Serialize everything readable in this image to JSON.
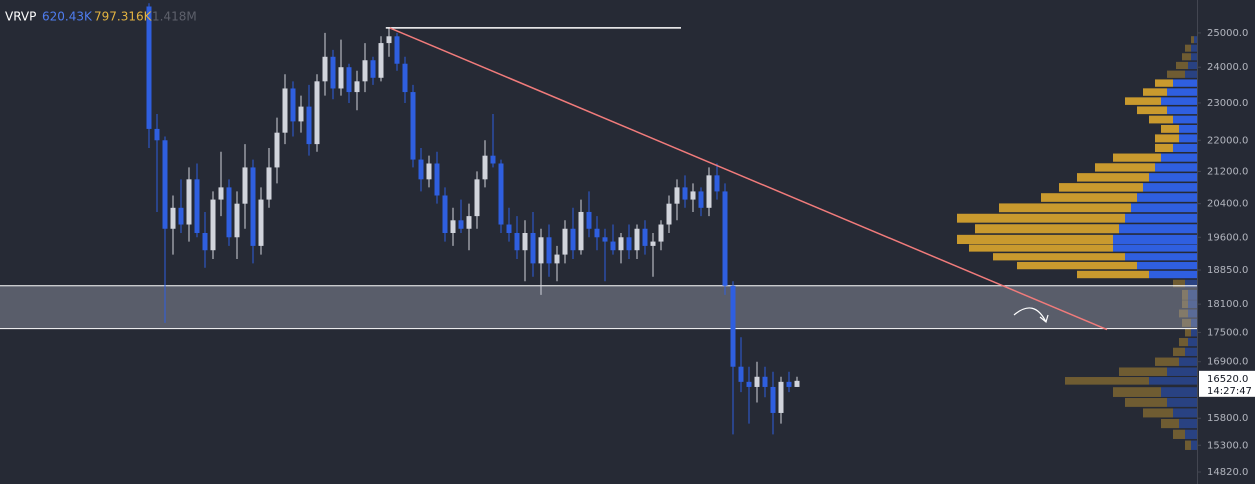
{
  "chart_data": {
    "type": "candlestick",
    "log_scale": true,
    "header": {
      "name": "VRVP",
      "up_total": "620.43K",
      "down_total": "797.316K",
      "total": "1.418M"
    },
    "up_color": "#d1d4dc",
    "down_color": "#2f5fe0",
    "ylim": [
      14610,
      26000
    ],
    "yticks": [
      {
        "value": 25000,
        "label": "25000.0"
      },
      {
        "value": 24000,
        "label": "24000.0"
      },
      {
        "value": 23000,
        "label": "23000.0"
      },
      {
        "value": 22000,
        "label": "22000.0"
      },
      {
        "value": 21200,
        "label": "21200.0"
      },
      {
        "value": 20400,
        "label": "20400.0"
      },
      {
        "value": 19600,
        "label": "19600.0"
      },
      {
        "value": 18850,
        "label": "18850.0"
      },
      {
        "value": 18100,
        "label": "18100.0"
      },
      {
        "value": 17500,
        "label": "17500.0"
      },
      {
        "value": 16900,
        "label": "16900.0"
      },
      {
        "value": 15800,
        "label": "15800.0"
      },
      {
        "value": 15300,
        "label": "15300.0"
      },
      {
        "value": 14820,
        "label": "14820.0"
      }
    ],
    "last_price": {
      "value": 16520,
      "label": "16520.0",
      "countdown": "14:27:47"
    },
    "candles": [
      [
        25800,
        25900,
        21800,
        22300
      ],
      [
        22300,
        22700,
        20200,
        22000
      ],
      [
        22000,
        22100,
        17700,
        19800
      ],
      [
        19800,
        20600,
        19200,
        20300
      ],
      [
        20300,
        21000,
        19700,
        19900
      ],
      [
        19900,
        21300,
        19500,
        21000
      ],
      [
        21000,
        21400,
        19600,
        19700
      ],
      [
        19700,
        20200,
        18900,
        19300
      ],
      [
        19300,
        20700,
        19100,
        20500
      ],
      [
        20500,
        21700,
        20100,
        20800
      ],
      [
        20800,
        21000,
        19400,
        19600
      ],
      [
        19600,
        20700,
        19100,
        20400
      ],
      [
        20400,
        21900,
        19800,
        21300
      ],
      [
        21300,
        21500,
        19000,
        19400
      ],
      [
        19400,
        20800,
        19200,
        20500
      ],
      [
        20500,
        21800,
        20300,
        21300
      ],
      [
        21300,
        22600,
        20900,
        22200
      ],
      [
        22200,
        23800,
        21900,
        23400
      ],
      [
        23400,
        23600,
        22100,
        22500
      ],
      [
        22500,
        23200,
        22200,
        22900
      ],
      [
        22900,
        23500,
        21600,
        21900
      ],
      [
        21900,
        23800,
        21700,
        23600
      ],
      [
        23600,
        25000,
        23200,
        24300
      ],
      [
        24300,
        24500,
        23100,
        23400
      ],
      [
        23400,
        24800,
        23200,
        24000
      ],
      [
        24000,
        24100,
        23000,
        23300
      ],
      [
        23300,
        23900,
        22800,
        23600
      ],
      [
        23600,
        24700,
        23300,
        24200
      ],
      [
        24200,
        24300,
        23500,
        23700
      ],
      [
        23700,
        24900,
        23600,
        24700
      ],
      [
        24700,
        25150,
        24300,
        24900
      ],
      [
        24900,
        25000,
        23900,
        24100
      ],
      [
        24100,
        24300,
        23000,
        23300
      ],
      [
        23300,
        23500,
        21300,
        21500
      ],
      [
        21500,
        21800,
        20700,
        21000
      ],
      [
        21000,
        21600,
        20800,
        21400
      ],
      [
        21400,
        21700,
        20400,
        20600
      ],
      [
        20600,
        20800,
        19500,
        19700
      ],
      [
        19700,
        20300,
        19400,
        20000
      ],
      [
        20000,
        20500,
        19700,
        19800
      ],
      [
        19800,
        20400,
        19300,
        20100
      ],
      [
        20100,
        21200,
        19800,
        21000
      ],
      [
        21000,
        22000,
        20800,
        21600
      ],
      [
        21600,
        22700,
        21300,
        21400
      ],
      [
        21400,
        21500,
        19700,
        19900
      ],
      [
        19900,
        20300,
        19500,
        19700
      ],
      [
        19700,
        20100,
        19100,
        19300
      ],
      [
        19300,
        20000,
        18600,
        19700
      ],
      [
        19700,
        20200,
        18700,
        19000
      ],
      [
        19000,
        19800,
        18300,
        19600
      ],
      [
        19600,
        19900,
        18700,
        19000
      ],
      [
        19000,
        19400,
        18600,
        19200
      ],
      [
        19200,
        20000,
        19000,
        19800
      ],
      [
        19800,
        20300,
        19100,
        19300
      ],
      [
        19300,
        20500,
        19200,
        20200
      ],
      [
        20200,
        20700,
        19600,
        19800
      ],
      [
        19800,
        20100,
        19300,
        19600
      ],
      [
        19600,
        19800,
        18600,
        19500
      ],
      [
        19500,
        19900,
        19200,
        19300
      ],
      [
        19300,
        19700,
        19000,
        19600
      ],
      [
        19600,
        19900,
        19100,
        19300
      ],
      [
        19300,
        19900,
        19100,
        19800
      ],
      [
        19800,
        20000,
        19200,
        19400
      ],
      [
        19400,
        19700,
        18700,
        19500
      ],
      [
        19500,
        20000,
        19300,
        19900
      ],
      [
        19900,
        20600,
        19700,
        20400
      ],
      [
        20400,
        21000,
        20000,
        20800
      ],
      [
        20800,
        21100,
        20300,
        20500
      ],
      [
        20500,
        20900,
        20200,
        20700
      ],
      [
        20700,
        20800,
        20100,
        20300
      ],
      [
        20300,
        21300,
        20100,
        21100
      ],
      [
        21100,
        21400,
        20500,
        20700
      ],
      [
        20700,
        20900,
        18300,
        18500
      ],
      [
        18500,
        18600,
        15500,
        16800
      ],
      [
        16800,
        17400,
        16300,
        16500
      ],
      [
        16500,
        16800,
        15700,
        16400
      ],
      [
        16400,
        16900,
        16100,
        16600
      ],
      [
        16600,
        16800,
        16200,
        16400
      ],
      [
        16400,
        16700,
        15500,
        15900
      ],
      [
        15900,
        16600,
        15700,
        16500
      ],
      [
        16500,
        16700,
        16300,
        16400
      ],
      [
        16400,
        16600,
        16400,
        16520
      ]
    ],
    "profile": {
      "value_area": [
        18650,
        23700
      ],
      "up_color": "#2f5fe0",
      "down_color": "#c99a2e",
      "prices": [
        15300,
        15500,
        15700,
        15900,
        16100,
        16300,
        16520,
        16700,
        16900,
        17100,
        17300,
        17500,
        17700,
        17900,
        18100,
        18300,
        18550,
        18750,
        18950,
        19150,
        19350,
        19550,
        19800,
        20050,
        20300,
        20550,
        20800,
        21050,
        21300,
        21550,
        21800,
        22050,
        22300,
        22550,
        22800,
        23050,
        23300,
        23550,
        23800,
        24050,
        24300,
        24550,
        24800
      ],
      "up": [
        1,
        2,
        3,
        4,
        5,
        6,
        8,
        5,
        3,
        2,
        1.5,
        1,
        1,
        1.5,
        1.5,
        1.5,
        2,
        8,
        10,
        12,
        14,
        14,
        13,
        12,
        11,
        10,
        9,
        8,
        7,
        6,
        4,
        3,
        3,
        4,
        5,
        6,
        5,
        4,
        2,
        1.5,
        1,
        1,
        0.5
      ],
      "down": [
        1,
        2,
        3,
        5,
        7,
        8,
        14,
        8,
        4,
        2,
        1.5,
        1,
        1.5,
        1.5,
        1,
        1,
        2,
        12,
        20,
        22,
        24,
        26,
        24,
        28,
        22,
        16,
        14,
        12,
        10,
        8,
        3,
        4,
        3,
        4,
        5,
        6,
        4,
        3,
        3,
        2,
        1.5,
        1,
        0.5
      ]
    },
    "zone": [
      17580,
      18500
    ],
    "level_line": {
      "x": [
        29.6,
        66.5
      ],
      "y": [
        25150,
        25150
      ]
    },
    "trendline": {
      "x": [
        30.1,
        119.75
      ],
      "y": [
        25150,
        17560
      ]
    }
  }
}
